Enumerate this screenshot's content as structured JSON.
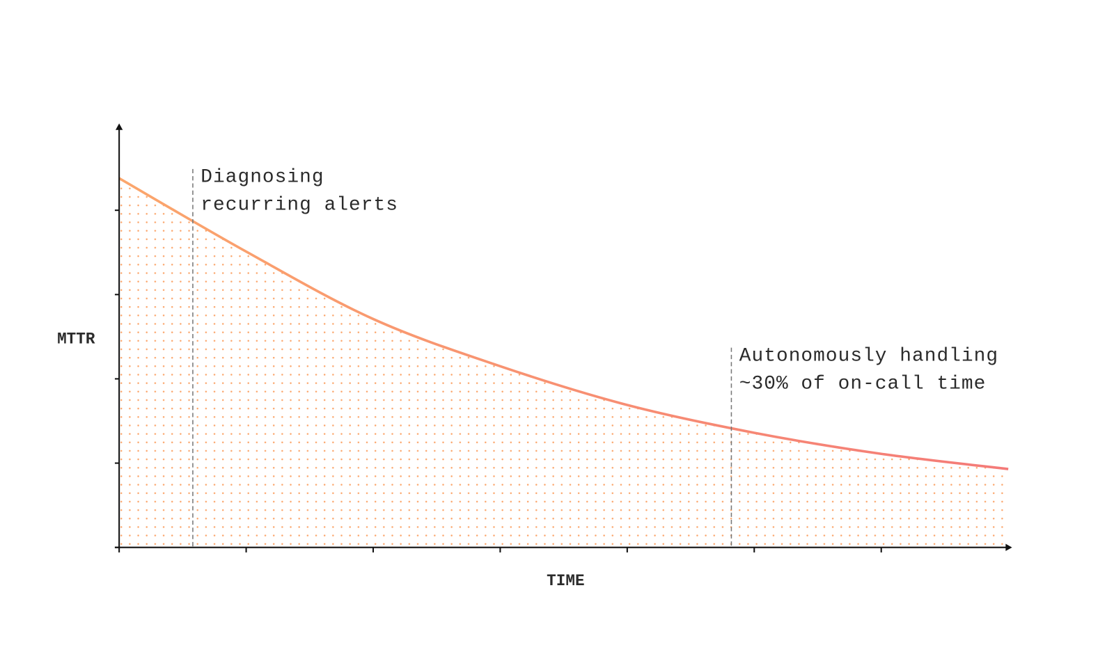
{
  "chart_data": {
    "type": "area",
    "x_label": "TIME",
    "y_label": "MTTR",
    "x": [
      0,
      1,
      2,
      3,
      4,
      5,
      6,
      7
    ],
    "series": [
      {
        "colors": [
          "#fba66c",
          "#f47a78"
        ],
        "values": [
          4.38,
          3.51,
          2.71,
          2.15,
          1.69,
          1.36,
          1.11,
          0.93
        ]
      }
    ],
    "xlim": [
      0,
      7.03
    ],
    "ylim": [
      0,
      5.03
    ],
    "xticks": [
      0,
      1,
      2,
      3,
      4,
      5,
      6
    ],
    "yticks": [
      0,
      1,
      2,
      3,
      4
    ],
    "annotations": [
      {
        "x": 0.58,
        "y": 4.49,
        "lines": [
          "Diagnosing",
          "recurring alerts"
        ]
      },
      {
        "x": 4.82,
        "y": 2.37,
        "lines": [
          "Autonomously handling",
          "~30% of on-call time"
        ]
      }
    ]
  }
}
